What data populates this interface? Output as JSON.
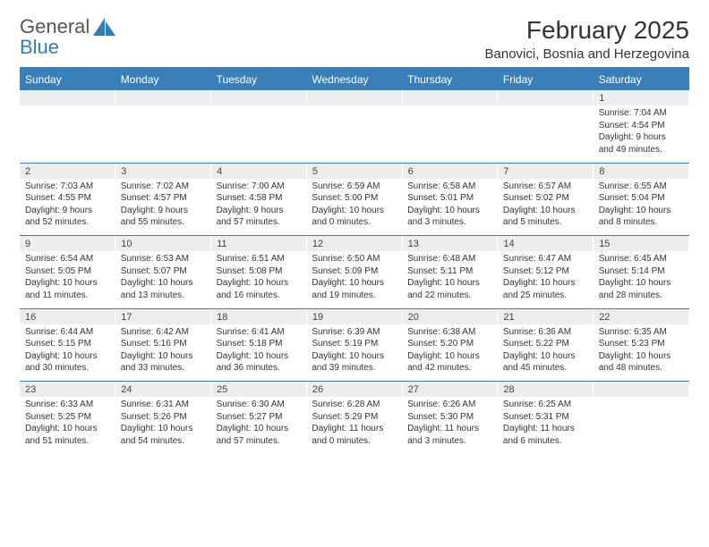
{
  "logo": {
    "top": "General",
    "bottom": "Blue"
  },
  "title": "February 2025",
  "location": "Banovici, Bosnia and Herzegovina",
  "colors": {
    "header_bg": "#3a7fb8",
    "header_text": "#ffffff",
    "daynum_bg": "#ededed",
    "rule": "#3a7fb8",
    "title_text": "#333333",
    "body_text": "#333333",
    "logo_gray": "#555555",
    "logo_blue": "#2f7fbf"
  },
  "day_names": [
    "Sunday",
    "Monday",
    "Tuesday",
    "Wednesday",
    "Thursday",
    "Friday",
    "Saturday"
  ],
  "weeks": [
    {
      "nums": [
        "",
        "",
        "",
        "",
        "",
        "",
        "1"
      ],
      "cells": [
        {},
        {},
        {},
        {},
        {},
        {},
        {
          "sunrise": "Sunrise: 7:04 AM",
          "sunset": "Sunset: 4:54 PM",
          "daylight1": "Daylight: 9 hours",
          "daylight2": "and 49 minutes."
        }
      ]
    },
    {
      "nums": [
        "2",
        "3",
        "4",
        "5",
        "6",
        "7",
        "8"
      ],
      "cells": [
        {
          "sunrise": "Sunrise: 7:03 AM",
          "sunset": "Sunset: 4:55 PM",
          "daylight1": "Daylight: 9 hours",
          "daylight2": "and 52 minutes."
        },
        {
          "sunrise": "Sunrise: 7:02 AM",
          "sunset": "Sunset: 4:57 PM",
          "daylight1": "Daylight: 9 hours",
          "daylight2": "and 55 minutes."
        },
        {
          "sunrise": "Sunrise: 7:00 AM",
          "sunset": "Sunset: 4:58 PM",
          "daylight1": "Daylight: 9 hours",
          "daylight2": "and 57 minutes."
        },
        {
          "sunrise": "Sunrise: 6:59 AM",
          "sunset": "Sunset: 5:00 PM",
          "daylight1": "Daylight: 10 hours",
          "daylight2": "and 0 minutes."
        },
        {
          "sunrise": "Sunrise: 6:58 AM",
          "sunset": "Sunset: 5:01 PM",
          "daylight1": "Daylight: 10 hours",
          "daylight2": "and 3 minutes."
        },
        {
          "sunrise": "Sunrise: 6:57 AM",
          "sunset": "Sunset: 5:02 PM",
          "daylight1": "Daylight: 10 hours",
          "daylight2": "and 5 minutes."
        },
        {
          "sunrise": "Sunrise: 6:55 AM",
          "sunset": "Sunset: 5:04 PM",
          "daylight1": "Daylight: 10 hours",
          "daylight2": "and 8 minutes."
        }
      ]
    },
    {
      "nums": [
        "9",
        "10",
        "11",
        "12",
        "13",
        "14",
        "15"
      ],
      "cells": [
        {
          "sunrise": "Sunrise: 6:54 AM",
          "sunset": "Sunset: 5:05 PM",
          "daylight1": "Daylight: 10 hours",
          "daylight2": "and 11 minutes."
        },
        {
          "sunrise": "Sunrise: 6:53 AM",
          "sunset": "Sunset: 5:07 PM",
          "daylight1": "Daylight: 10 hours",
          "daylight2": "and 13 minutes."
        },
        {
          "sunrise": "Sunrise: 6:51 AM",
          "sunset": "Sunset: 5:08 PM",
          "daylight1": "Daylight: 10 hours",
          "daylight2": "and 16 minutes."
        },
        {
          "sunrise": "Sunrise: 6:50 AM",
          "sunset": "Sunset: 5:09 PM",
          "daylight1": "Daylight: 10 hours",
          "daylight2": "and 19 minutes."
        },
        {
          "sunrise": "Sunrise: 6:48 AM",
          "sunset": "Sunset: 5:11 PM",
          "daylight1": "Daylight: 10 hours",
          "daylight2": "and 22 minutes."
        },
        {
          "sunrise": "Sunrise: 6:47 AM",
          "sunset": "Sunset: 5:12 PM",
          "daylight1": "Daylight: 10 hours",
          "daylight2": "and 25 minutes."
        },
        {
          "sunrise": "Sunrise: 6:45 AM",
          "sunset": "Sunset: 5:14 PM",
          "daylight1": "Daylight: 10 hours",
          "daylight2": "and 28 minutes."
        }
      ]
    },
    {
      "nums": [
        "16",
        "17",
        "18",
        "19",
        "20",
        "21",
        "22"
      ],
      "cells": [
        {
          "sunrise": "Sunrise: 6:44 AM",
          "sunset": "Sunset: 5:15 PM",
          "daylight1": "Daylight: 10 hours",
          "daylight2": "and 30 minutes."
        },
        {
          "sunrise": "Sunrise: 6:42 AM",
          "sunset": "Sunset: 5:16 PM",
          "daylight1": "Daylight: 10 hours",
          "daylight2": "and 33 minutes."
        },
        {
          "sunrise": "Sunrise: 6:41 AM",
          "sunset": "Sunset: 5:18 PM",
          "daylight1": "Daylight: 10 hours",
          "daylight2": "and 36 minutes."
        },
        {
          "sunrise": "Sunrise: 6:39 AM",
          "sunset": "Sunset: 5:19 PM",
          "daylight1": "Daylight: 10 hours",
          "daylight2": "and 39 minutes."
        },
        {
          "sunrise": "Sunrise: 6:38 AM",
          "sunset": "Sunset: 5:20 PM",
          "daylight1": "Daylight: 10 hours",
          "daylight2": "and 42 minutes."
        },
        {
          "sunrise": "Sunrise: 6:36 AM",
          "sunset": "Sunset: 5:22 PM",
          "daylight1": "Daylight: 10 hours",
          "daylight2": "and 45 minutes."
        },
        {
          "sunrise": "Sunrise: 6:35 AM",
          "sunset": "Sunset: 5:23 PM",
          "daylight1": "Daylight: 10 hours",
          "daylight2": "and 48 minutes."
        }
      ]
    },
    {
      "nums": [
        "23",
        "24",
        "25",
        "26",
        "27",
        "28",
        ""
      ],
      "cells": [
        {
          "sunrise": "Sunrise: 6:33 AM",
          "sunset": "Sunset: 5:25 PM",
          "daylight1": "Daylight: 10 hours",
          "daylight2": "and 51 minutes."
        },
        {
          "sunrise": "Sunrise: 6:31 AM",
          "sunset": "Sunset: 5:26 PM",
          "daylight1": "Daylight: 10 hours",
          "daylight2": "and 54 minutes."
        },
        {
          "sunrise": "Sunrise: 6:30 AM",
          "sunset": "Sunset: 5:27 PM",
          "daylight1": "Daylight: 10 hours",
          "daylight2": "and 57 minutes."
        },
        {
          "sunrise": "Sunrise: 6:28 AM",
          "sunset": "Sunset: 5:29 PM",
          "daylight1": "Daylight: 11 hours",
          "daylight2": "and 0 minutes."
        },
        {
          "sunrise": "Sunrise: 6:26 AM",
          "sunset": "Sunset: 5:30 PM",
          "daylight1": "Daylight: 11 hours",
          "daylight2": "and 3 minutes."
        },
        {
          "sunrise": "Sunrise: 6:25 AM",
          "sunset": "Sunset: 5:31 PM",
          "daylight1": "Daylight: 11 hours",
          "daylight2": "and 6 minutes."
        },
        {}
      ]
    }
  ]
}
